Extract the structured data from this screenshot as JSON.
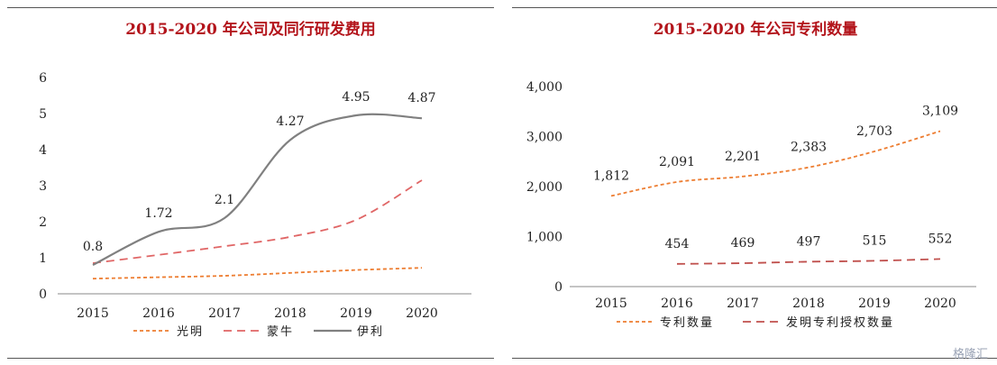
{
  "chart_data": [
    {
      "type": "line",
      "title": "2015-2020 年公司及同行研发费用",
      "categories": [
        "2015",
        "2016",
        "2017",
        "2018",
        "2019",
        "2020"
      ],
      "ylim": [
        0,
        6
      ],
      "yticks": [
        "0",
        "1",
        "2",
        "3",
        "4",
        "5",
        "6"
      ],
      "grid": false,
      "legend_position": "bottom",
      "series": [
        {
          "name": "光明",
          "values": [
            0.42,
            0.46,
            0.5,
            0.58,
            0.66,
            0.72
          ],
          "color": "#ed7d31",
          "style": "dotted",
          "labels": [
            "",
            "",
            "",
            "",
            "",
            ""
          ]
        },
        {
          "name": "蒙牛",
          "values": [
            0.85,
            1.08,
            1.32,
            1.58,
            2.05,
            3.15
          ],
          "color": "#e06666",
          "style": "dashed",
          "labels": [
            "",
            "",
            "",
            "",
            "",
            ""
          ]
        },
        {
          "name": "伊利",
          "values": [
            0.8,
            1.72,
            2.1,
            4.27,
            4.95,
            4.87
          ],
          "color": "#808080",
          "style": "solid",
          "labels": [
            "0.8",
            "1.72",
            "2.1",
            "4.27",
            "4.95",
            "4.87"
          ]
        }
      ]
    },
    {
      "type": "line",
      "title": "2015-2020 年公司专利数量",
      "categories": [
        "2015",
        "2016",
        "2017",
        "2018",
        "2019",
        "2020"
      ],
      "ylim": [
        0,
        4000
      ],
      "yticks": [
        "0",
        "1,000",
        "2,000",
        "3,000",
        "4,000"
      ],
      "grid": false,
      "legend_position": "bottom",
      "series": [
        {
          "name": "专利数量",
          "values": [
            1812,
            2091,
            2201,
            2383,
            2703,
            3109
          ],
          "color": "#ed7d31",
          "style": "dotted",
          "labels": [
            "1,812",
            "2,091",
            "2,201",
            "2,383",
            "2,703",
            "3,109"
          ]
        },
        {
          "name": "发明专利授权数量",
          "values": [
            null,
            454,
            469,
            497,
            515,
            552
          ],
          "color": "#c0504d",
          "style": "dashed",
          "labels": [
            "",
            "454",
            "469",
            "497",
            "515",
            "552"
          ]
        }
      ]
    }
  ],
  "watermark": "格隆汇"
}
